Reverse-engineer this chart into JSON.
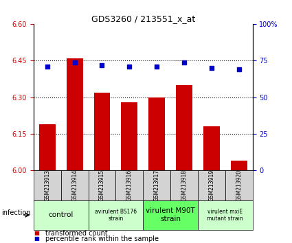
{
  "title": "GDS3260 / 213551_x_at",
  "samples": [
    "GSM213913",
    "GSM213914",
    "GSM213915",
    "GSM213916",
    "GSM213917",
    "GSM213918",
    "GSM213919",
    "GSM213920"
  ],
  "bar_values": [
    6.19,
    6.46,
    6.32,
    6.28,
    6.3,
    6.35,
    6.18,
    6.04
  ],
  "dot_values": [
    71,
    74,
    72,
    71,
    71,
    74,
    70,
    69
  ],
  "ylim_left": [
    6.0,
    6.6
  ],
  "ylim_right": [
    0,
    100
  ],
  "yticks_left": [
    6.0,
    6.15,
    6.3,
    6.45,
    6.6
  ],
  "yticks_right": [
    0,
    25,
    50,
    75,
    100
  ],
  "bar_color": "#cc0000",
  "dot_color": "#0000cc",
  "hline_values": [
    6.15,
    6.3,
    6.45
  ],
  "groups": [
    {
      "label": "control",
      "indices": [
        0,
        1
      ],
      "color": "#ccffcc",
      "fontsize": 7.5
    },
    {
      "label": "avirulent BS176\nstrain",
      "indices": [
        2,
        3
      ],
      "color": "#ccffcc",
      "fontsize": 5.5
    },
    {
      "label": "virulent M90T\nstrain",
      "indices": [
        4,
        5
      ],
      "color": "#66ff66",
      "fontsize": 7.5
    },
    {
      "label": "virulent mxiE\nmutant strain",
      "indices": [
        6,
        7
      ],
      "color": "#ccffcc",
      "fontsize": 5.5
    }
  ],
  "xlabel_group": "infection",
  "legend_red": "transformed count",
  "legend_blue": "percentile rank within the sample",
  "tick_label_color_left": "#cc0000",
  "tick_label_color_right": "#0000cc",
  "bar_width": 0.6,
  "sample_gray": "#d3d3d3",
  "sample_fontsize": 5.5,
  "title_fontsize": 9,
  "legend_fontsize": 7
}
